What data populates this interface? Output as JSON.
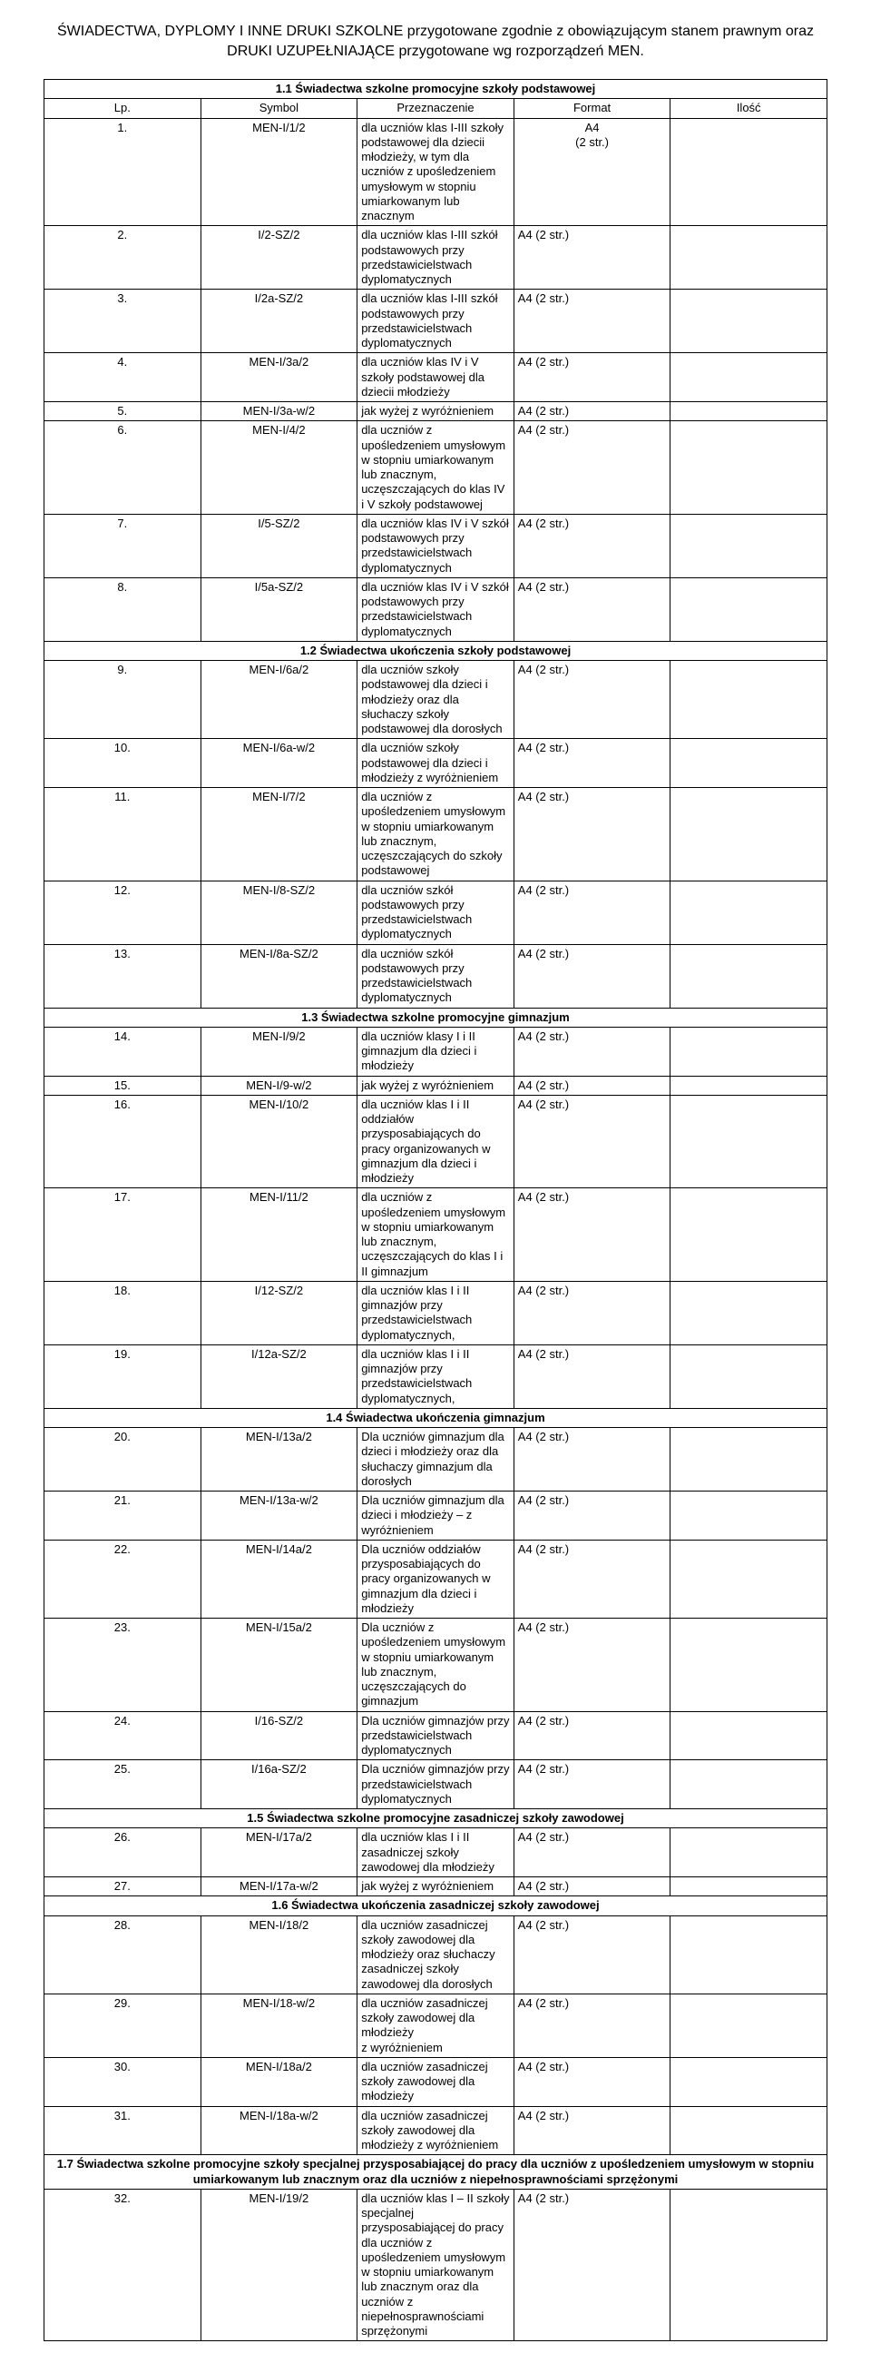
{
  "pageTitle": "ŚWIADECTWA, DYPLOMY I INNE DRUKI SZKOLNE przygotowane zgodnie z obowiązującym stanem prawnym oraz DRUKI UZUPEŁNIAJĄCE przygotowane wg rozporządzeń MEN.",
  "headers": {
    "lp": "Lp.",
    "symbol": "Symbol",
    "przeznaczenie": "Przeznaczenie",
    "format": "Format",
    "ilosc": "Ilość"
  },
  "sections": [
    {
      "title": "1.1 Świadectwa szkolne promocyjne szkoły podstawowej",
      "before_header": true,
      "rows": [
        {
          "lp": "1.",
          "sym": "MEN-I/1/2",
          "desc": "dla uczniów klas I-III szkoły podstawowej dla dziecii młodzieży, w tym dla uczniów  z upośledzeniem umysłowym w stopniu umiarkowanym lub znacznym",
          "fmt": "A4",
          "fmt2": "(2 str.)"
        },
        {
          "lp": "2.",
          "sym": "I/2-SZ/2",
          "desc": "dla uczniów klas I-III szkół podstawowych przy przedstawicielstwach dyplomatycznych",
          "fmt": "A4 (2 str.)"
        },
        {
          "lp": "3.",
          "sym": "I/2a-SZ/2",
          "desc": "dla uczniów klas I-III szkół podstawowych przy przedstawicielstwach dyplomatycznych",
          "fmt": "A4 (2 str.)"
        },
        {
          "lp": "4.",
          "sym": "MEN-I/3a/2",
          "desc": "dla uczniów klas IV i V szkoły podstawowej dla dziecii młodzieży",
          "fmt": "A4 (2 str.)"
        },
        {
          "lp": "5.",
          "sym": "MEN-I/3a-w/2",
          "desc": "jak wyżej z wyróżnieniem",
          "fmt": "A4 (2 str.)"
        },
        {
          "lp": "6.",
          "sym": "MEN-I/4/2",
          "desc": "dla uczniów z upośledzeniem umysłowym w stopniu umiarkowanym lub znacznym, uczęszczających do klas IV i V szkoły podstawowej",
          "fmt": "A4 (2 str.)"
        },
        {
          "lp": "7.",
          "sym": "I/5-SZ/2",
          "desc": "dla uczniów klas IV i V szkół podstawowych przy przedstawicielstwach dyplomatycznych",
          "fmt": "A4 (2 str.)"
        },
        {
          "lp": "8.",
          "sym": "I/5a-SZ/2",
          "desc": "dla uczniów klas IV i V szkół podstawowych przy przedstawicielstwach dyplomatycznych",
          "fmt": "A4 (2 str.)"
        }
      ]
    },
    {
      "title": "1.2 Świadectwa ukończenia szkoły podstawowej",
      "rows": [
        {
          "lp": "9.",
          "sym": "MEN-I/6a/2",
          "desc": "dla uczniów szkoły podstawowej dla dzieci i młodzieży oraz dla słuchaczy szkoły podstawowej dla dorosłych",
          "fmt": "A4 (2 str.)"
        },
        {
          "lp": "10.",
          "sym": "MEN-I/6a-w/2",
          "desc": "dla uczniów szkoły podstawowej dla dzieci i młodzieży z wyróżnieniem",
          "fmt": "A4 (2 str.)"
        },
        {
          "lp": "11.",
          "sym": "MEN-I/7/2",
          "desc": "dla uczniów z upośledzeniem umysłowym w stopniu umiarkowanym lub znacznym, uczęszczających do szkoły podstawowej",
          "fmt": "A4 (2 str.)"
        },
        {
          "lp": "12.",
          "sym": "MEN-I/8-SZ/2",
          "desc": "dla uczniów szkół podstawowych przy przedstawicielstwach dyplomatycznych",
          "fmt": "A4 (2 str.)"
        },
        {
          "lp": "13.",
          "sym": "MEN-I/8a-SZ/2",
          "desc": "dla uczniów szkół podstawowych przy przedstawicielstwach dyplomatycznych",
          "fmt": "A4 (2 str.)"
        }
      ]
    },
    {
      "title": "1.3 Świadectwa szkolne promocyjne gimnazjum",
      "rows": [
        {
          "lp": "14.",
          "sym": "MEN-I/9/2",
          "desc": "dla uczniów klasy I i II gimnazjum dla dzieci i młodzieży",
          "fmt": "A4 (2 str.)"
        },
        {
          "lp": "15.",
          "sym": "MEN-I/9-w/2",
          "desc": "jak wyżej z wyróżnieniem",
          "fmt": "A4 (2 str.)"
        },
        {
          "lp": "16.",
          "sym": "MEN-I/10/2",
          "desc": "dla uczniów klas I i II oddziałów przysposabiających do pracy organizowanych w gimnazjum dla dzieci i młodzieży",
          "fmt": "A4 (2 str.)"
        },
        {
          "lp": "17.",
          "sym": "MEN-I/11/2",
          "desc": "dla uczniów z upośledzeniem umysłowym w stopniu umiarkowanym lub znacznym, uczęszczających do klas I i II gimnazjum",
          "fmt": "A4 (2 str.)"
        },
        {
          "lp": "18.",
          "sym": "I/12-SZ/2",
          "desc": "dla uczniów klas I i II gimnazjów przy przedstawicielstwach dyplomatycznych,",
          "fmt": "A4 (2 str.)"
        },
        {
          "lp": "19.",
          "sym": "I/12a-SZ/2",
          "desc": "dla uczniów klas I i II gimnazjów przy przedstawicielstwach dyplomatycznych,",
          "fmt": "A4 (2 str.)"
        }
      ]
    },
    {
      "title": "1.4 Świadectwa ukończenia gimnazjum",
      "rows": [
        {
          "lp": "20.",
          "sym": "MEN-I/13a/2",
          "desc": "Dla uczniów gimnazjum dla dzieci i młodzieży oraz dla słuchaczy gimnazjum dla dorosłych",
          "fmt": "A4 (2 str.)"
        },
        {
          "lp": "21.",
          "sym": "MEN-I/13a-w/2",
          "desc": "Dla uczniów gimnazjum dla dzieci i młodzieży – z wyróżnieniem",
          "fmt": "A4 (2 str.)"
        },
        {
          "lp": "22.",
          "sym": "MEN-I/14a/2",
          "desc": "Dla uczniów oddziałów przysposabiających do pracy organizowanych w gimnazjum dla dzieci i młodzieży",
          "fmt": "A4 (2 str.)"
        },
        {
          "lp": "23.",
          "sym": "MEN-I/15a/2",
          "desc": "Dla uczniów z upośledzeniem umysłowym w stopniu umiarkowanym lub znacznym, uczęszczających do gimnazjum",
          "fmt": "A4 (2 str.)"
        },
        {
          "lp": "24.",
          "sym": "I/16-SZ/2",
          "desc": "Dla uczniów gimnazjów przy przedstawicielstwach dyplomatycznych",
          "fmt": "A4 (2 str.)"
        },
        {
          "lp": "25.",
          "sym": "I/16a-SZ/2",
          "desc": "Dla uczniów gimnazjów przy przedstawicielstwach dyplomatycznych",
          "fmt": "A4 (2 str.)"
        }
      ]
    },
    {
      "title": "1.5 Świadectwa szkolne promocyjne zasadniczej szkoły zawodowej",
      "rows": [
        {
          "lp": "26.",
          "sym": "MEN-I/17a/2",
          "desc": "dla uczniów klas I i II zasadniczej szkoły zawodowej dla młodzieży",
          "fmt": "A4 (2 str.)"
        },
        {
          "lp": "27.",
          "sym": "MEN-I/17a-w/2",
          "desc": "jak wyżej z wyróżnieniem",
          "fmt": "A4 (2 str.)"
        }
      ]
    },
    {
      "title": "1.6 Świadectwa ukończenia zasadniczej szkoły zawodowej",
      "rows": [
        {
          "lp": "28.",
          "sym": "MEN-I/18/2",
          "desc": "dla uczniów zasadniczej szkoły zawodowej dla młodzieży oraz słuchaczy zasadniczej szkoły zawodowej dla dorosłych",
          "fmt": "A4 (2 str.)"
        },
        {
          "lp": "29.",
          "sym": "MEN-I/18-w/2",
          "desc": "dla uczniów zasadniczej szkoły zawodowej dla młodzieży\nz wyróżnieniem",
          "fmt": "A4 (2 str.)"
        },
        {
          "lp": "30.",
          "sym": "MEN-I/18a/2",
          "desc": "dla uczniów zasadniczej szkoły zawodowej dla młodzieży",
          "fmt": "A4 (2 str.)"
        },
        {
          "lp": "31.",
          "sym": "MEN-I/18a-w/2",
          "desc": "dla uczniów zasadniczej szkoły zawodowej dla młodzieży z wyróżnieniem",
          "fmt": "A4 (2 str.)"
        }
      ]
    },
    {
      "title": "1.7 Świadectwa szkolne promocyjne szkoły specjalnej przysposabiającej do pracy dla uczniów z upośledzeniem umysłowym w stopniu umiarkowanym lub znacznym oraz dla uczniów z niepełnosprawnościami sprzężonymi",
      "rows": [
        {
          "lp": "32.",
          "sym": "MEN-I/19/2",
          "desc": "dla uczniów klas I – II szkoły specjalnej przysposabiającej do pracy dla uczniów z upośledzeniem umysłowym w stopniu umiarkowanym lub znacznym oraz dla uczniów z niepełnosprawnościami sprzężonymi",
          "fmt": "A4 (2 str.)"
        }
      ]
    }
  ]
}
